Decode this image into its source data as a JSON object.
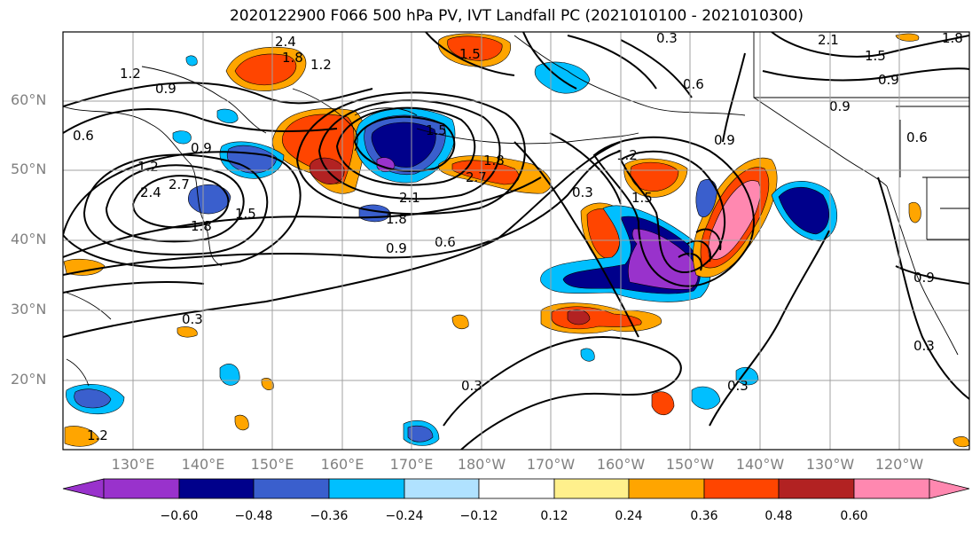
{
  "title": "2020122900 F066 500 hPa PV, IVT Landfall PC (2021010100 - 2021010300)",
  "lat_labels": [
    "60°N",
    "50°N",
    "40°N",
    "30°N",
    "20°N"
  ],
  "lon_labels": [
    "130°E",
    "140°E",
    "150°E",
    "160°E",
    "170°E",
    "180°W",
    "170°W",
    "160°W",
    "150°W",
    "140°W",
    "130°W",
    "120°W"
  ],
  "colorbar": {
    "ticks": [
      "−0.60",
      "−0.48",
      "−0.36",
      "−0.24",
      "−0.12",
      "0.12",
      "0.24",
      "0.36",
      "0.48",
      "0.60"
    ],
    "colors": [
      "#9932cc",
      "#00008b",
      "#3a5fcd",
      "#00bfff",
      "#b0e2ff",
      "#ffffff",
      "#fff08c",
      "#ffa500",
      "#ff4500",
      "#b22222",
      "#ff88b0"
    ]
  },
  "contour_labels": [
    "2.4",
    "1.8",
    "1.5",
    "1.2",
    "1.2",
    "0.9",
    "0.6",
    "0.9",
    "2.4",
    "2.7",
    "1.5",
    "1.2",
    "1.8",
    "2.1",
    "1.8",
    "1.5",
    "2.7",
    "1.8",
    "0.9",
    "0.6",
    "0.3",
    "0.3",
    "1.2",
    "1.5",
    "0.9",
    "0.6",
    "0.9",
    "0.3",
    "2.1",
    "1.5",
    "1.8",
    "0.9",
    "0.6",
    "0.9",
    "0.3",
    "0.3",
    "0.3",
    "1.2"
  ]
}
